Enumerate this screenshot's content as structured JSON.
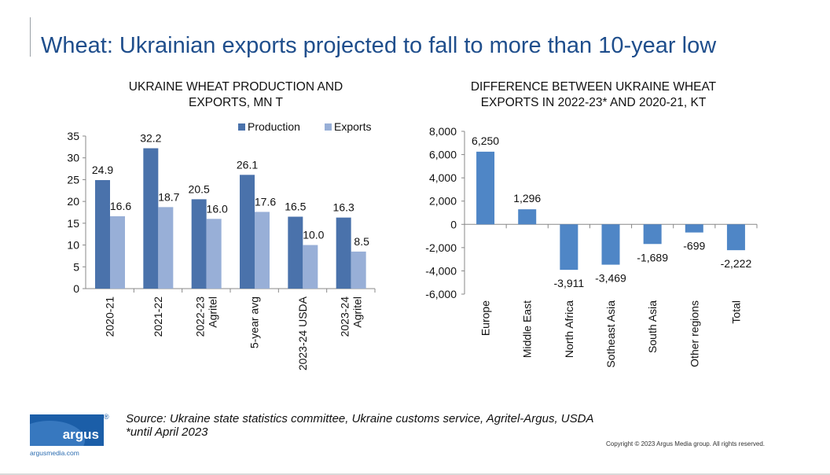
{
  "page": {
    "title": "Wheat: Ukrainian exports projected to fall to more than 10-year low",
    "source": "Source: Ukraine state statistics committee, Ukraine customs service, Agritel-Argus, USDA",
    "note": "*until April 2023",
    "copyright": "Copyright © 2023 Argus Media group. All rights reserved.",
    "logo_text": "argus",
    "logo_reg": "®",
    "logo_url": "argusmedia.com"
  },
  "colors": {
    "title": "#1f4e8c",
    "production": "#4a72ab",
    "exports": "#98afd7",
    "difference": "#4f86c6"
  },
  "chart_data": [
    {
      "type": "bar",
      "title_line1": "UKRAINE WHEAT PRODUCTION AND",
      "title_line2": "EXPORTS, MN T",
      "categories": [
        [
          "2020-21"
        ],
        [
          "2021-22"
        ],
        [
          "2022-23",
          "Agritel"
        ],
        [
          "5-year avg"
        ],
        [
          "2023-24 USDA"
        ],
        [
          "2023-24",
          "Agritel"
        ]
      ],
      "series": [
        {
          "name": "Production",
          "values": [
            24.9,
            32.2,
            20.5,
            26.1,
            16.5,
            16.3
          ]
        },
        {
          "name": "Exports",
          "values": [
            16.6,
            18.7,
            16.0,
            17.6,
            10.0,
            8.5
          ]
        }
      ],
      "data_labels": [
        [
          "24.9",
          "32.2",
          "20.5",
          "26.1",
          "16.5",
          "16.3"
        ],
        [
          "16.6",
          "18.7",
          "16.0",
          "17.6",
          "10.0",
          "8.5"
        ]
      ],
      "ylim": [
        0,
        35
      ],
      "yticks": [
        "0",
        "5",
        "10",
        "15",
        "20",
        "25",
        "30",
        "35"
      ],
      "legend": "top-right",
      "grid": false
    },
    {
      "type": "bar",
      "title_line1": "DIFFERENCE BETWEEN UKRAINE WHEAT",
      "title_line2": "EXPORTS IN 2022-23* AND 2020-21, KT",
      "categories": [
        "Europe",
        "Middle East",
        "North Africa",
        "Sotheast Asia",
        "South Asia",
        "Other regions",
        "Total"
      ],
      "values": [
        6250,
        1296,
        -3911,
        -3469,
        -1689,
        -699,
        -2222
      ],
      "data_labels": [
        "6,250",
        "1,296",
        "-3,911",
        "-3,469",
        "-1,689",
        "-699",
        "-2,222"
      ],
      "ylim": [
        -6000,
        8000
      ],
      "yticks": [
        "-6,000",
        "-4,000",
        "-2,000",
        "0",
        "2,000",
        "4,000",
        "6,000",
        "8,000"
      ],
      "grid": false
    }
  ]
}
